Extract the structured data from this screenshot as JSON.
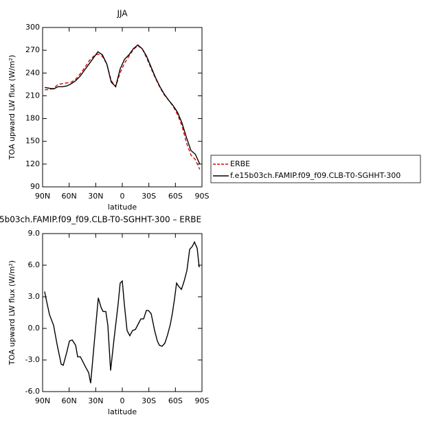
{
  "chart_data": [
    {
      "type": "line",
      "title": "JJA",
      "xlabel": "latitude",
      "ylabel": "TOA upward LW flux (W/m²)",
      "xlim": [
        90,
        -90
      ],
      "xticks": [
        {
          "value": 90,
          "label": "90N"
        },
        {
          "value": 60,
          "label": "60N"
        },
        {
          "value": 30,
          "label": "30N"
        },
        0,
        {
          "value": -30,
          "label": "30S"
        },
        {
          "value": -60,
          "label": "60S"
        },
        {
          "value": -90,
          "label": "90S"
        }
      ],
      "ylim": [
        90,
        300
      ],
      "yticks": [
        90,
        120,
        150,
        180,
        210,
        240,
        270,
        300
      ],
      "legend": "right",
      "x": [
        87.5,
        82.5,
        77.5,
        72.5,
        67.5,
        62.5,
        57.5,
        52.5,
        47.5,
        42.5,
        37.5,
        32.5,
        27.5,
        22.5,
        17.5,
        12.5,
        7.5,
        2.5,
        -2.5,
        -7.5,
        -12.5,
        -17.5,
        -22.5,
        -27.5,
        -32.5,
        -37.5,
        -42.5,
        -47.5,
        -52.5,
        -57.5,
        -62.5,
        -67.5,
        -72.5,
        -77.5,
        -82.5,
        -87.5
      ],
      "series": [
        {
          "name": "ERBE",
          "color": "#e00000",
          "linestyle": "dashed",
          "values": [
            218,
            218,
            220,
            225,
            226,
            227,
            228,
            232,
            239,
            247,
            256,
            262,
            265,
            262,
            252,
            230,
            222,
            240,
            253,
            262,
            271,
            276,
            272,
            260,
            246,
            233,
            221,
            211,
            204,
            196,
            185,
            170,
            148,
            132,
            126,
            113
          ]
        },
        {
          "name": "f.e15b03ch.FAMIP.f09_f09.CLB-T0-SGHHT-300",
          "color": "#000000",
          "linestyle": "solid",
          "values": [
            221,
            220,
            219,
            222,
            222,
            223,
            226,
            230,
            236,
            244,
            252,
            260,
            268,
            264,
            252,
            228,
            222,
            245,
            258,
            264,
            272,
            277,
            272,
            262,
            248,
            234,
            222,
            212,
            204,
            197,
            188,
            174,
            155,
            138,
            133,
            120
          ]
        }
      ]
    },
    {
      "type": "line",
      "title": "5b03ch.FAMIP.f09_f09.CLB-T0-SGHHT-300 – ERBE",
      "xlabel": "latitude",
      "ylabel": "TOA upward LW flux (W/m²)",
      "xlim": [
        90,
        -90
      ],
      "xticks": [
        {
          "value": 90,
          "label": "90N"
        },
        {
          "value": 60,
          "label": "60N"
        },
        {
          "value": 30,
          "label": "30N"
        },
        0,
        {
          "value": -30,
          "label": "30S"
        },
        {
          "value": -60,
          "label": "60S"
        },
        {
          "value": -90,
          "label": "90S"
        }
      ],
      "ylim": [
        -6,
        9
      ],
      "yticks": [
        {
          "value": -6,
          "label": "-6.0"
        },
        {
          "value": -3,
          "label": "-3.0"
        },
        {
          "value": 0,
          "label": "0.0"
        },
        {
          "value": 3,
          "label": "3.0"
        },
        {
          "value": 6,
          "label": "6.0"
        },
        {
          "value": 9,
          "label": "9.0"
        }
      ],
      "x": [
        87.7,
        85.3,
        82.2,
        77.6,
        73.7,
        69.0,
        66.7,
        62.8,
        59.7,
        56.6,
        52.7,
        50.4,
        47.3,
        41.9,
        38.0,
        35.7,
        31.8,
        27.1,
        24.0,
        21.7,
        18.6,
        16.3,
        13.2,
        9.3,
        4.7,
        2.4,
        0,
        -2.3,
        -5.4,
        -8.5,
        -11.6,
        -14.8,
        -17.9,
        -21.0,
        -24.1,
        -27.2,
        -29.5,
        -32.6,
        -36.5,
        -39.6,
        -41.9,
        -45.0,
        -48.1,
        -51.2,
        -54.3,
        -56.7,
        -59.0,
        -61.3,
        -63.6,
        -66.8,
        -69.9,
        -73.0,
        -76.1,
        -79.2,
        -81.5,
        -84.6,
        -86.9
      ],
      "series": [
        {
          "color": "#000000",
          "linestyle": "solid",
          "values": [
            3.5,
            2.5,
            1.3,
            0.3,
            -1.5,
            -3.4,
            -3.5,
            -2.3,
            -1.2,
            -1.1,
            -1.6,
            -2.7,
            -2.7,
            -3.6,
            -4.2,
            -5.2,
            -1.5,
            2.9,
            2.0,
            1.6,
            1.6,
            0.3,
            -4.0,
            -1.0,
            2.3,
            4.3,
            4.5,
            2.3,
            -0.2,
            -0.7,
            -0.2,
            -0.1,
            0.4,
            0.9,
            0.9,
            1.7,
            1.7,
            1.4,
            -0.2,
            -1.2,
            -1.6,
            -1.7,
            -1.4,
            -0.6,
            0.4,
            1.5,
            2.8,
            4.3,
            4.0,
            3.7,
            4.5,
            5.5,
            7.5,
            7.8,
            8.2,
            7.6,
            5.8
          ]
        }
      ]
    }
  ]
}
